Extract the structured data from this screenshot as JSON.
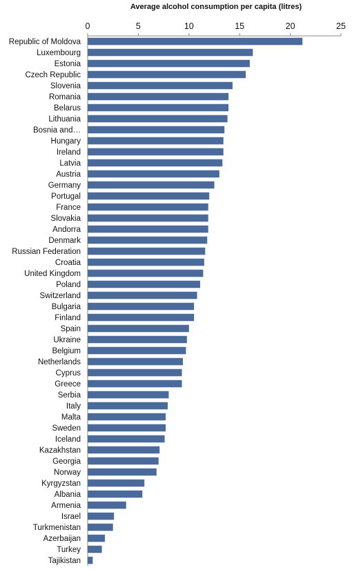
{
  "chart_data": {
    "type": "bar",
    "orientation": "horizontal",
    "title": "",
    "xlabel": "Average alcohol consumption per capita (litres)",
    "ylabel": "",
    "xlim": [
      0,
      25
    ],
    "xticks": [
      0,
      5,
      10,
      15,
      20,
      25
    ],
    "xaxis_position": "top",
    "grid": false,
    "legend": "none",
    "bar_color": "#4A6A9C",
    "categories": [
      "Republic of Moldova",
      "Luxembourg",
      "Estonia",
      "Czech Republic",
      "Slovenia",
      "Romania",
      "Belarus",
      "Lithuania",
      "Bosnia and…",
      "Hungary",
      "Ireland",
      "Latvia",
      "Austria",
      "Germany",
      "Portugal",
      "France",
      "Slovakia",
      "Andorra",
      "Denmark",
      "Russian Federation",
      "Croatia",
      "United Kingdom",
      "Poland",
      "Switzerland",
      "Bulgaria",
      "Finland",
      "Spain",
      "Ukraine",
      "Belgium",
      "Netherlands",
      "Cyprus",
      "Greece",
      "Serbia",
      "Italy",
      "Malta",
      "Sweden",
      "Iceland",
      "Kazakhstan",
      "Georgia",
      "Norway",
      "Kyrgyzstan",
      "Albania",
      "Armenia",
      "Israel",
      "Turkmenistan",
      "Azerbaijan",
      "Turkey",
      "Tajikistan"
    ],
    "values": [
      21.2,
      16.3,
      16.0,
      15.6,
      14.3,
      13.9,
      13.9,
      13.8,
      13.5,
      13.4,
      13.4,
      13.3,
      13.0,
      12.5,
      12.0,
      11.9,
      11.9,
      11.9,
      11.8,
      11.6,
      11.5,
      11.4,
      11.1,
      10.8,
      10.5,
      10.5,
      10.0,
      9.8,
      9.7,
      9.4,
      9.3,
      9.3,
      8.0,
      7.9,
      7.7,
      7.7,
      7.6,
      7.1,
      7.0,
      6.8,
      5.6,
      5.4,
      3.8,
      2.6,
      2.5,
      1.7,
      1.4,
      0.5
    ]
  }
}
